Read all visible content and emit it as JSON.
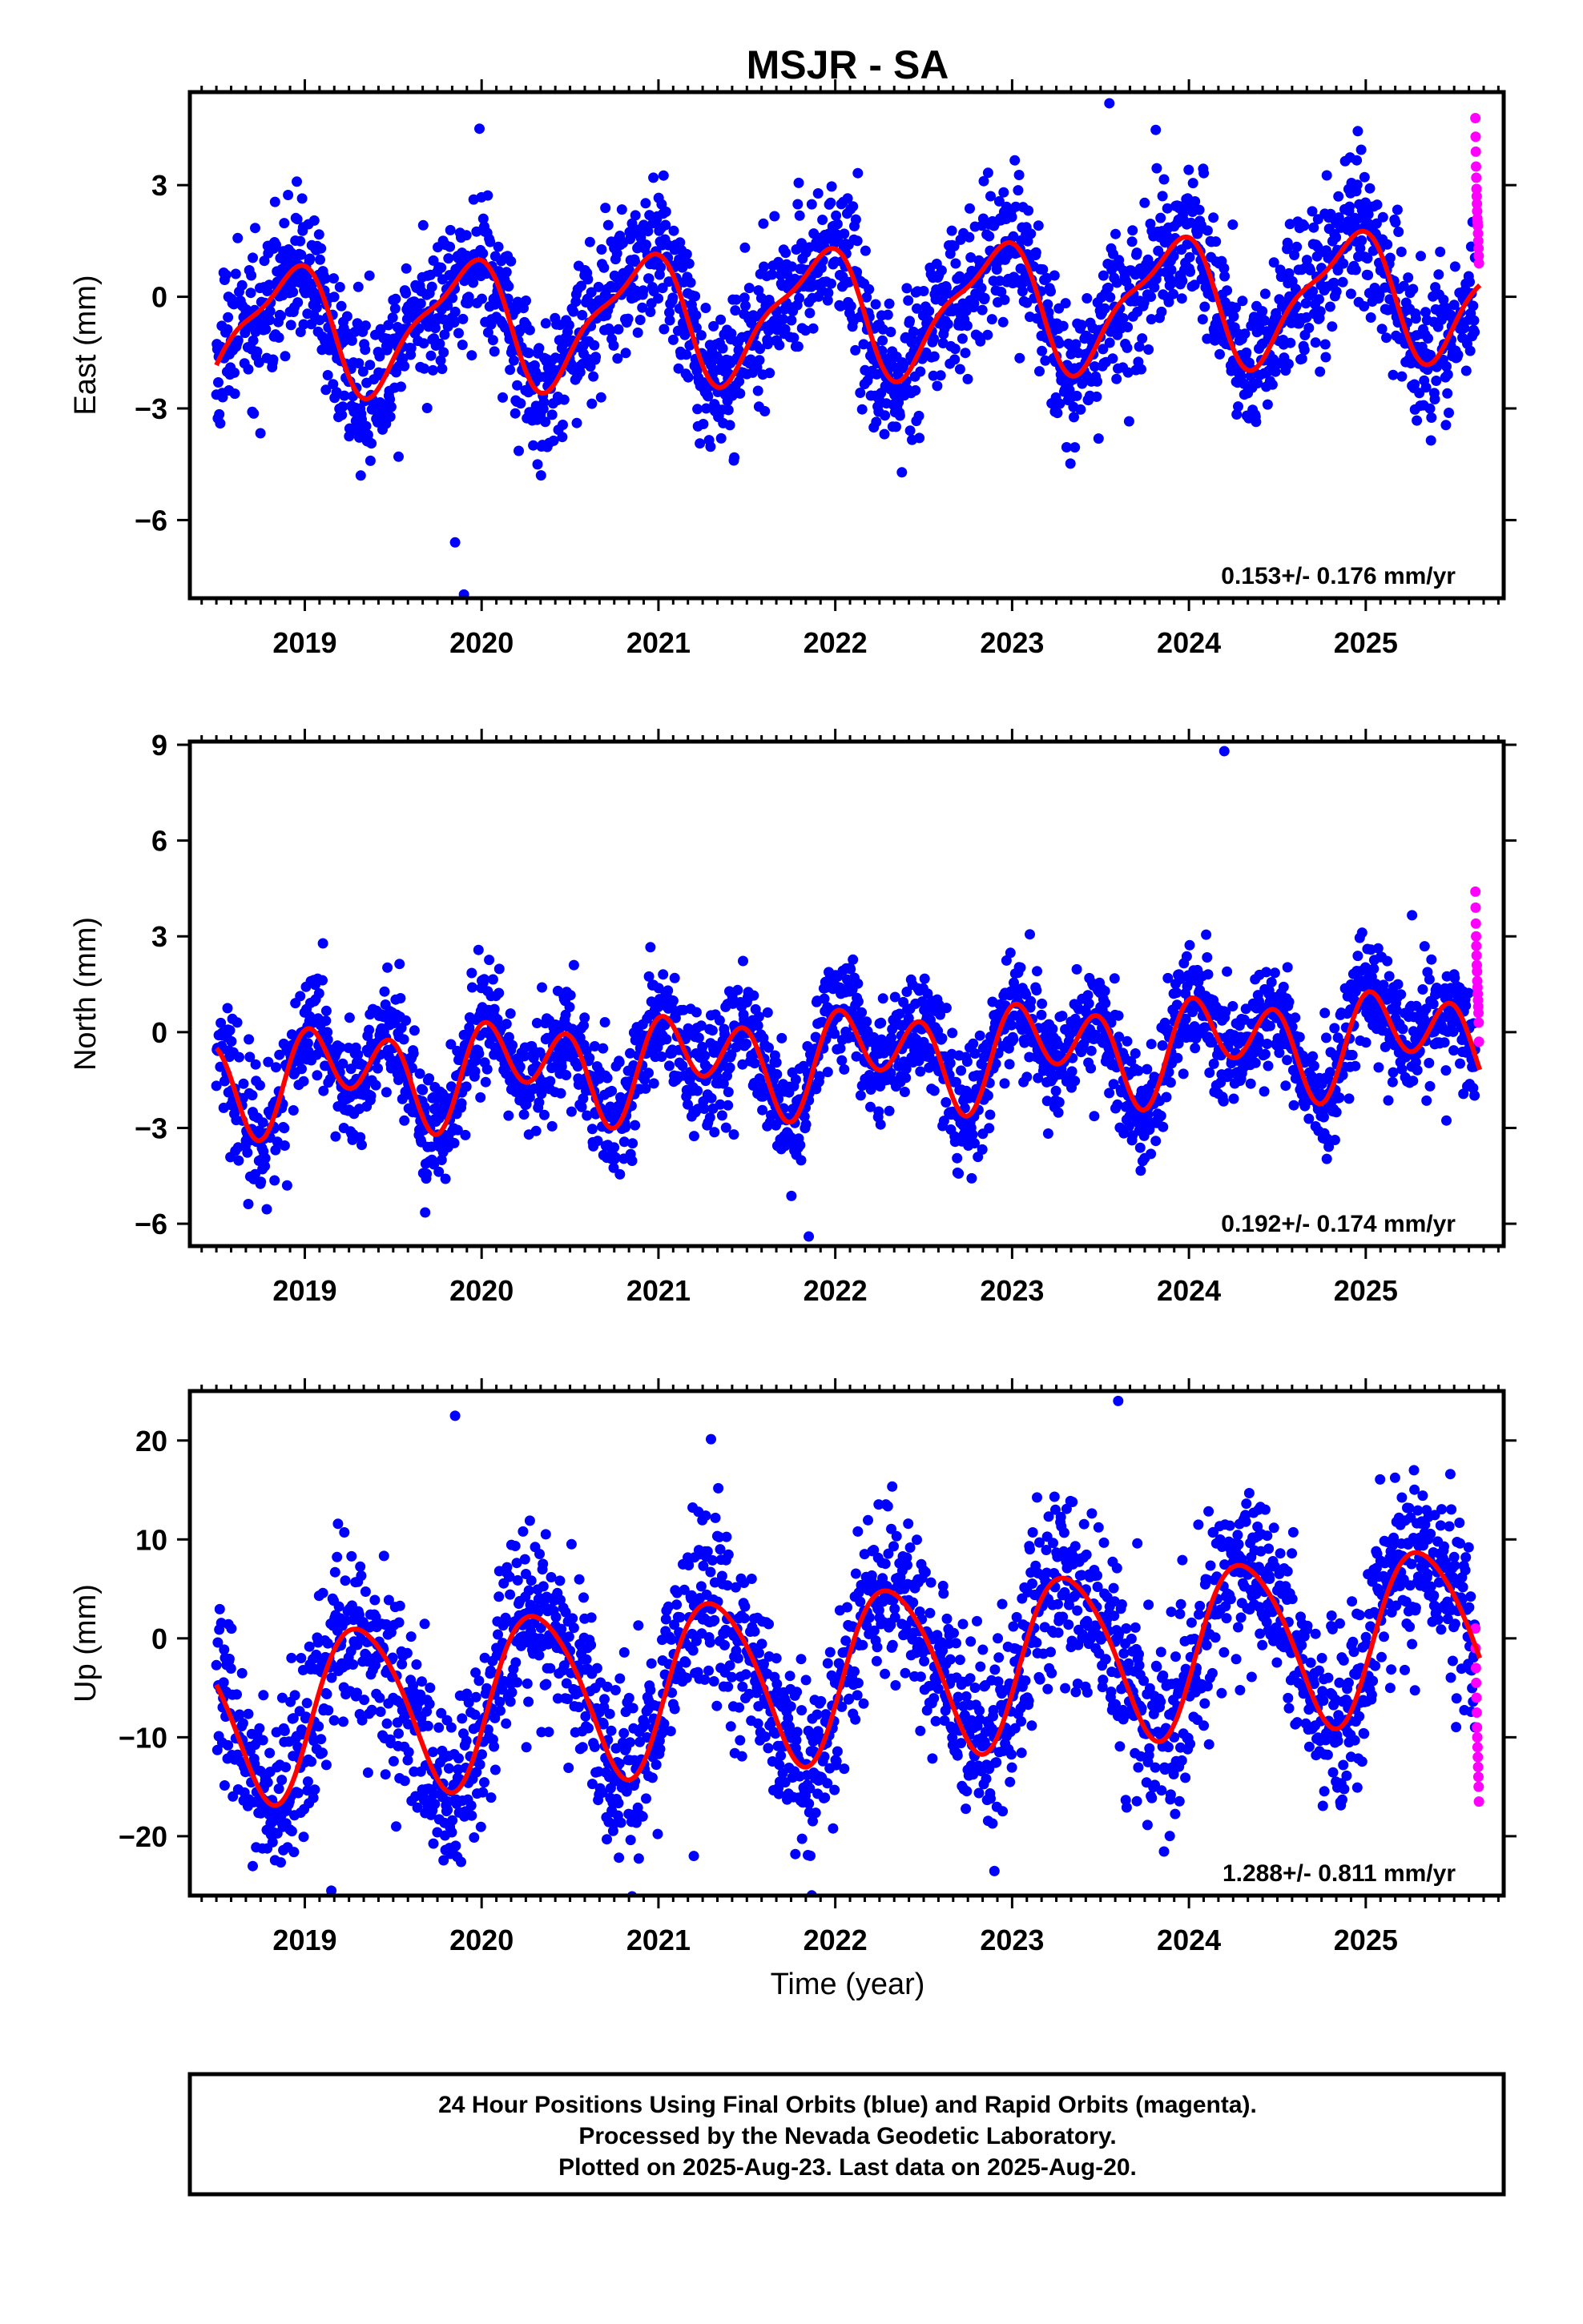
{
  "title": "MSJR - SA",
  "x_axis_label": "Time (year)",
  "footer": {
    "line1": "24 Hour Positions Using Final Orbits (blue) and Rapid Orbits (magenta).",
    "line2": "Processed by the Nevada Geodetic Laboratory.",
    "line3": "Plotted on 2025-Aug-23. Last data on 2025-Aug-20."
  },
  "colors": {
    "final": "#0000ff",
    "rapid": "#ff00ff",
    "model": "#ff0000",
    "frame": "#000000"
  },
  "chart_data": [
    {
      "type": "scatter",
      "ylabel": "East (mm)",
      "rate_label": "0.153+/- 0.176 mm/yr",
      "xlim": [
        2018.35,
        2025.78
      ],
      "ylim": [
        -8.1,
        5.5
      ],
      "x_ticks": [
        2019,
        2020,
        2021,
        2022,
        2023,
        2024,
        2025
      ],
      "y_ticks": [
        -6,
        -3,
        0,
        3
      ],
      "y_tick_labels": [
        "−6",
        "−3",
        "0",
        "3"
      ],
      "model": {
        "offset": -0.4,
        "trend": 0.153,
        "annual_amp": 1.6,
        "annual_phase": 2.2,
        "semi_amp": 0.5,
        "semi_phase": 0.9,
        "scatter": 1.0,
        "seed": 11
      },
      "final_range": [
        2018.5,
        2025.62
      ],
      "rapid": {
        "x_start": 2025.62,
        "x_end": 2025.64,
        "values": [
          4.8,
          4.3,
          3.9,
          3.5,
          3.2,
          2.9,
          2.7,
          2.5,
          2.3,
          2.1,
          2.0,
          1.9,
          1.7,
          1.5,
          1.3,
          1.1,
          0.9
        ]
      },
      "outliers": [
        {
          "x": 2019.9,
          "y": -8.0
        },
        {
          "x": 2019.85,
          "y": -6.6
        },
        {
          "x": 2023.55,
          "y": 5.2
        }
      ]
    },
    {
      "type": "scatter",
      "ylabel": "North (mm)",
      "rate_label": "0.192+/- 0.174 mm/yr",
      "xlim": [
        2018.35,
        2025.78
      ],
      "ylim": [
        -6.7,
        9.1
      ],
      "x_ticks": [
        2019,
        2020,
        2021,
        2022,
        2023,
        2024,
        2025
      ],
      "y_ticks": [
        -6,
        -3,
        0,
        3,
        6,
        9
      ],
      "y_tick_labels": [
        "−6",
        "−3",
        "0",
        "3",
        "6",
        "9"
      ],
      "model": {
        "offset": -0.8,
        "trend": 0.192,
        "annual_amp": 0.8,
        "annual_phase": 0.3,
        "semi_amp": 1.2,
        "semi_phase": 1.6,
        "scatter": 0.9,
        "seed": 23
      },
      "final_range": [
        2018.5,
        2025.62
      ],
      "rapid": {
        "x_start": 2025.62,
        "x_end": 2025.64,
        "values": [
          4.4,
          3.9,
          3.4,
          3.0,
          2.7,
          2.4,
          2.1,
          1.9,
          1.6,
          1.4,
          1.2,
          1.0,
          0.8,
          0.6,
          0.3,
          -0.3
        ]
      },
      "outliers": [
        {
          "x": 2024.2,
          "y": 8.8
        },
        {
          "x": 2021.85,
          "y": -6.4
        },
        {
          "x": 2018.9,
          "y": -4.8
        }
      ]
    },
    {
      "type": "scatter",
      "ylabel": "Up (mm)",
      "rate_label": "1.288+/- 0.811 mm/yr",
      "xlim": [
        2018.35,
        2025.78
      ],
      "ylim": [
        -26,
        25
      ],
      "x_ticks": [
        2019,
        2020,
        2021,
        2022,
        2023,
        2024,
        2025
      ],
      "y_ticks": [
        -20,
        -10,
        0,
        10,
        20
      ],
      "y_tick_labels": [
        "−20",
        "−10",
        "0",
        "10",
        "20"
      ],
      "model": {
        "offset": -3.5,
        "trend": 1.288,
        "annual_amp": 8.5,
        "annual_phase": -0.4,
        "semi_amp": 1.0,
        "semi_phase": 0.0,
        "scatter": 4.5,
        "seed": 37
      },
      "final_range": [
        2018.5,
        2025.62
      ],
      "rapid": {
        "x_start": 2025.62,
        "x_end": 2025.64,
        "values": [
          1.0,
          -1.0,
          -3.0,
          -4.5,
          -6.0,
          -7.5,
          -9.0,
          -10.0,
          -11.0,
          -12.0,
          -13.0,
          -14.0,
          -15.0,
          -16.5
        ]
      },
      "outliers": [
        {
          "x": 2019.15,
          "y": -25.5
        },
        {
          "x": 2021.2,
          "y": -22.0
        },
        {
          "x": 2023.6,
          "y": 24.0
        },
        {
          "x": 2019.85,
          "y": 22.5
        }
      ]
    }
  ]
}
